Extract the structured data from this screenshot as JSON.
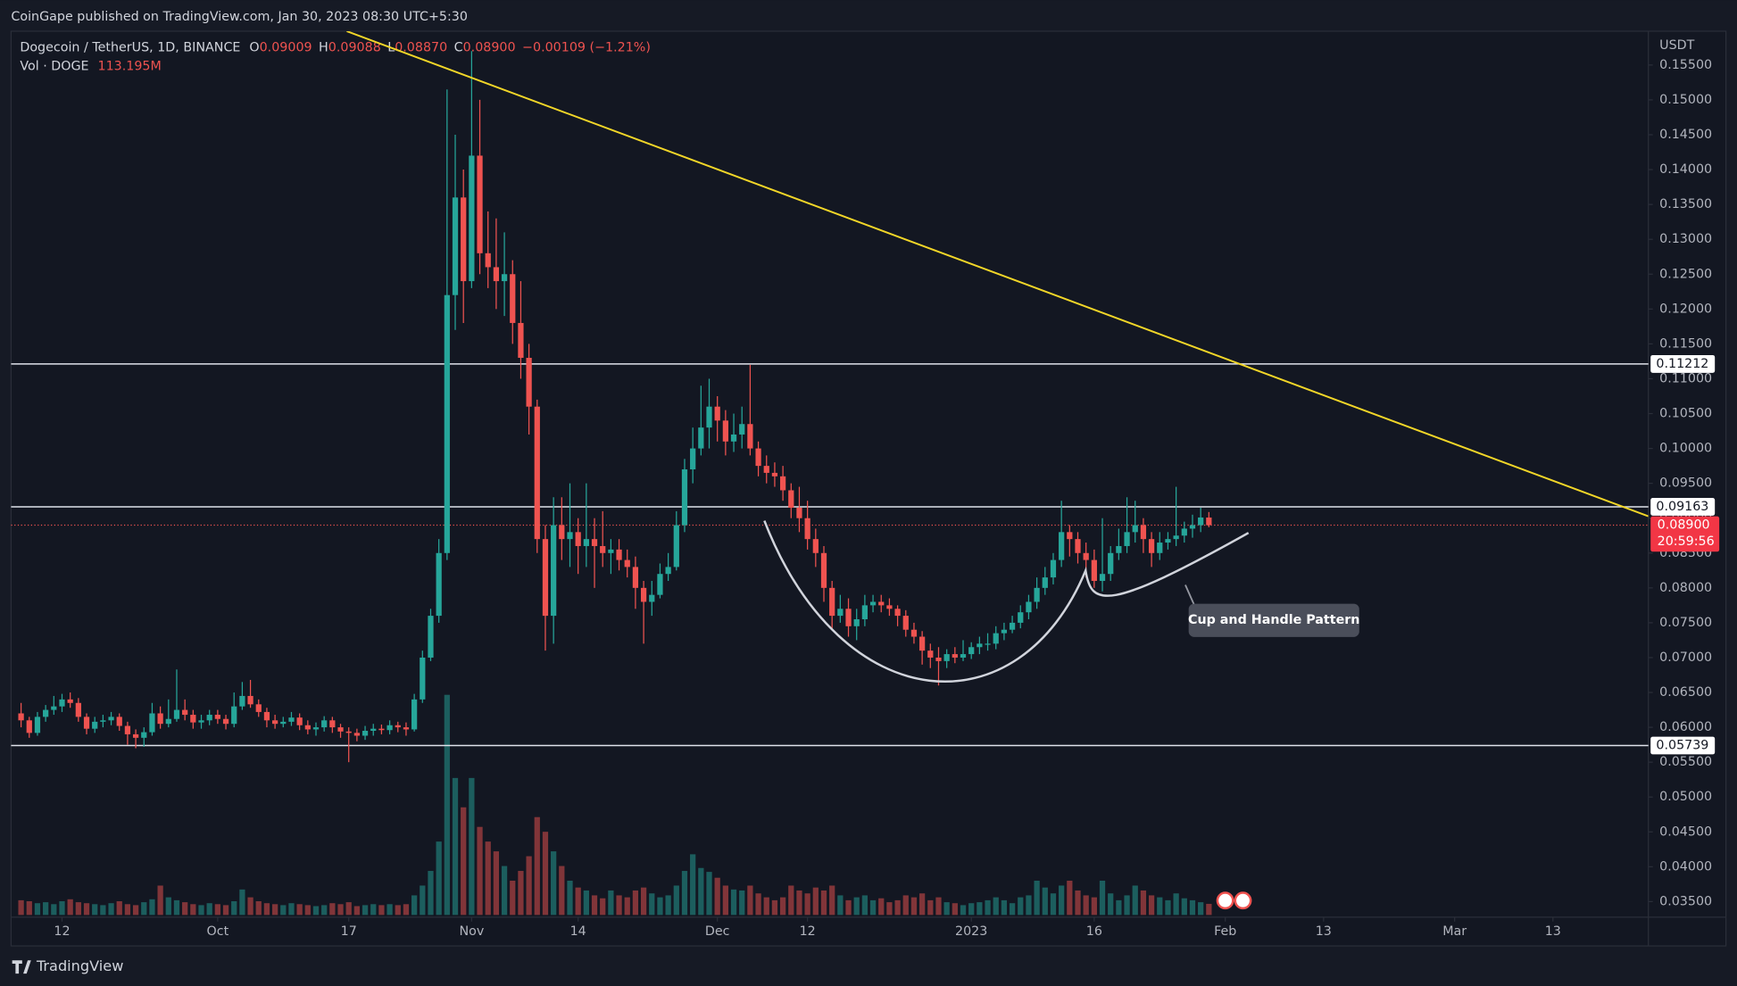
{
  "header": {
    "publisher": "CoinGape published on TradingView.com, Jan 30, 2023 08:30 UTC+5:30",
    "symbol": "Dogecoin / TetherUS, 1D, BINANCE",
    "ohlc": [
      [
        "O",
        "0.09009"
      ],
      [
        "H",
        "0.09088"
      ],
      [
        "L",
        "0.08870"
      ],
      [
        "C",
        "0.08900"
      ]
    ],
    "change": "−0.00109 (−1.21%)",
    "volume_name": "Vol · DOGE",
    "volume_value": "113.195M",
    "currency": "USDT",
    "brand": "TradingView"
  },
  "chart_data": {
    "type": "candlestick",
    "annotation": "Cup and Handle Pattern",
    "up_color": "#26a69a",
    "down_color": "#ef5350",
    "open": [
      0.062,
      0.061,
      0.0592,
      0.0615,
      0.0625,
      0.063,
      0.064,
      0.0635,
      0.0615,
      0.0598,
      0.0608,
      0.061,
      0.0615,
      0.0602,
      0.059,
      0.0585,
      0.0593,
      0.062,
      0.0605,
      0.0612,
      0.0625,
      0.0618,
      0.0607,
      0.061,
      0.0618,
      0.0612,
      0.0605,
      0.063,
      0.0645,
      0.0633,
      0.0622,
      0.061,
      0.0605,
      0.0608,
      0.0614,
      0.0603,
      0.0597,
      0.06,
      0.061,
      0.06,
      0.0594,
      0.0592,
      0.0588,
      0.0595,
      0.0598,
      0.0596,
      0.0603,
      0.06,
      0.0597,
      0.064,
      0.07,
      0.076,
      0.085,
      0.122,
      0.136,
      0.124,
      0.142,
      0.128,
      0.126,
      0.124,
      0.125,
      0.118,
      0.113,
      0.106,
      0.087,
      0.076,
      0.089,
      0.087,
      0.088,
      0.086,
      0.087,
      0.086,
      0.085,
      0.0855,
      0.084,
      0.083,
      0.08,
      0.078,
      0.079,
      0.082,
      0.083,
      0.089,
      0.097,
      0.1,
      0.103,
      0.106,
      0.104,
      0.101,
      0.102,
      0.1035,
      0.1,
      0.0975,
      0.0965,
      0.096,
      0.094,
      0.0915,
      0.09,
      0.087,
      0.085,
      0.08,
      0.076,
      0.077,
      0.0745,
      0.0755,
      0.0775,
      0.078,
      0.0775,
      0.077,
      0.076,
      0.074,
      0.073,
      0.071,
      0.07,
      0.0695,
      0.0705,
      0.07,
      0.0705,
      0.0715,
      0.072,
      0.072,
      0.0735,
      0.074,
      0.075,
      0.0765,
      0.078,
      0.08,
      0.0815,
      0.084,
      0.088,
      0.087,
      0.085,
      0.084,
      0.081,
      0.082,
      0.085,
      0.086,
      0.088,
      0.089,
      0.087,
      0.085,
      0.0865,
      0.087,
      0.0875,
      0.0885,
      0.089,
      0.09009
    ],
    "high": [
      0.0635,
      0.0615,
      0.0622,
      0.0632,
      0.0645,
      0.0648,
      0.065,
      0.0642,
      0.062,
      0.0615,
      0.0618,
      0.0622,
      0.062,
      0.0608,
      0.0597,
      0.06,
      0.0635,
      0.063,
      0.064,
      0.0683,
      0.064,
      0.0625,
      0.0618,
      0.0625,
      0.0625,
      0.0618,
      0.065,
      0.0665,
      0.0668,
      0.064,
      0.0628,
      0.0618,
      0.0615,
      0.0622,
      0.062,
      0.061,
      0.0607,
      0.0616,
      0.0615,
      0.0605,
      0.06,
      0.0598,
      0.0602,
      0.0605,
      0.0604,
      0.061,
      0.0608,
      0.0607,
      0.0648,
      0.071,
      0.077,
      0.087,
      0.1515,
      0.145,
      0.14,
      0.157,
      0.15,
      0.134,
      0.133,
      0.131,
      0.127,
      0.124,
      0.115,
      0.107,
      0.089,
      0.093,
      0.093,
      0.095,
      0.09,
      0.095,
      0.09,
      0.091,
      0.087,
      0.087,
      0.0855,
      0.0845,
      0.081,
      0.081,
      0.0835,
      0.085,
      0.091,
      0.0985,
      0.103,
      0.109,
      0.11,
      0.1075,
      0.1055,
      0.105,
      0.106,
      0.112,
      0.101,
      0.099,
      0.098,
      0.0975,
      0.095,
      0.0945,
      0.0925,
      0.0885,
      0.086,
      0.081,
      0.079,
      0.0785,
      0.077,
      0.079,
      0.079,
      0.079,
      0.0785,
      0.0775,
      0.0768,
      0.075,
      0.0738,
      0.072,
      0.0715,
      0.0712,
      0.0715,
      0.0725,
      0.0722,
      0.073,
      0.0735,
      0.0745,
      0.075,
      0.076,
      0.0775,
      0.079,
      0.0815,
      0.083,
      0.085,
      0.0925,
      0.089,
      0.088,
      0.0865,
      0.0855,
      0.09,
      0.086,
      0.0885,
      0.093,
      0.0925,
      0.09,
      0.088,
      0.088,
      0.088,
      0.0945,
      0.0895,
      0.0905,
      0.0915,
      0.09088
    ],
    "low": [
      0.06,
      0.0585,
      0.0588,
      0.0608,
      0.0618,
      0.0622,
      0.0628,
      0.0608,
      0.059,
      0.0592,
      0.06,
      0.0603,
      0.0595,
      0.0575,
      0.057,
      0.0572,
      0.0588,
      0.0598,
      0.06,
      0.0608,
      0.061,
      0.0598,
      0.0598,
      0.0603,
      0.0605,
      0.0597,
      0.06,
      0.0625,
      0.0628,
      0.0615,
      0.06,
      0.0598,
      0.06,
      0.0602,
      0.0596,
      0.059,
      0.0588,
      0.0594,
      0.0592,
      0.0585,
      0.055,
      0.058,
      0.0582,
      0.0588,
      0.059,
      0.059,
      0.0593,
      0.0588,
      0.0594,
      0.0635,
      0.0695,
      0.075,
      0.084,
      0.117,
      0.118,
      0.123,
      0.125,
      0.123,
      0.12,
      0.119,
      0.115,
      0.11,
      0.102,
      0.085,
      0.071,
      0.072,
      0.084,
      0.083,
      0.082,
      0.083,
      0.08,
      0.083,
      0.082,
      0.0825,
      0.0815,
      0.077,
      0.072,
      0.076,
      0.0785,
      0.081,
      0.0825,
      0.088,
      0.095,
      0.099,
      0.1,
      0.101,
      0.099,
      0.0995,
      0.1,
      0.099,
      0.096,
      0.095,
      0.0945,
      0.0925,
      0.09,
      0.088,
      0.0855,
      0.083,
      0.078,
      0.074,
      0.075,
      0.073,
      0.0725,
      0.0745,
      0.0765,
      0.0765,
      0.076,
      0.0745,
      0.073,
      0.072,
      0.069,
      0.0685,
      0.066,
      0.0685,
      0.0692,
      0.0695,
      0.0698,
      0.0705,
      0.071,
      0.0712,
      0.0725,
      0.0735,
      0.0742,
      0.0755,
      0.077,
      0.079,
      0.0805,
      0.083,
      0.0845,
      0.0835,
      0.0815,
      0.08,
      0.0795,
      0.081,
      0.084,
      0.085,
      0.0865,
      0.085,
      0.083,
      0.084,
      0.0855,
      0.086,
      0.0865,
      0.0872,
      0.088,
      0.0887
    ],
    "close": [
      0.061,
      0.0592,
      0.0615,
      0.0625,
      0.063,
      0.064,
      0.0635,
      0.0615,
      0.0598,
      0.0608,
      0.061,
      0.0615,
      0.0602,
      0.059,
      0.0585,
      0.0593,
      0.062,
      0.0605,
      0.0612,
      0.0625,
      0.0618,
      0.0607,
      0.061,
      0.0618,
      0.0612,
      0.0605,
      0.063,
      0.0645,
      0.0633,
      0.0622,
      0.061,
      0.0605,
      0.0608,
      0.0614,
      0.0603,
      0.0597,
      0.06,
      0.061,
      0.06,
      0.0594,
      0.0592,
      0.0588,
      0.0595,
      0.0598,
      0.0596,
      0.0603,
      0.06,
      0.0597,
      0.064,
      0.07,
      0.076,
      0.085,
      0.122,
      0.136,
      0.124,
      0.142,
      0.128,
      0.126,
      0.124,
      0.125,
      0.118,
      0.113,
      0.106,
      0.087,
      0.076,
      0.089,
      0.087,
      0.088,
      0.086,
      0.087,
      0.086,
      0.085,
      0.0855,
      0.084,
      0.083,
      0.08,
      0.078,
      0.079,
      0.082,
      0.083,
      0.089,
      0.097,
      0.1,
      0.103,
      0.106,
      0.104,
      0.101,
      0.102,
      0.1035,
      0.1,
      0.0975,
      0.0965,
      0.096,
      0.094,
      0.0915,
      0.09,
      0.087,
      0.085,
      0.08,
      0.076,
      0.077,
      0.0745,
      0.0755,
      0.0775,
      0.078,
      0.0775,
      0.077,
      0.076,
      0.074,
      0.073,
      0.071,
      0.07,
      0.0695,
      0.0705,
      0.07,
      0.0705,
      0.0715,
      0.072,
      0.072,
      0.0735,
      0.074,
      0.075,
      0.0765,
      0.078,
      0.08,
      0.0815,
      0.084,
      0.088,
      0.087,
      0.085,
      0.084,
      0.081,
      0.082,
      0.085,
      0.086,
      0.088,
      0.089,
      0.087,
      0.085,
      0.0865,
      0.087,
      0.0875,
      0.0885,
      0.089,
      0.0901,
      0.089
    ],
    "volume": [
      150,
      140,
      120,
      130,
      110,
      140,
      160,
      130,
      120,
      110,
      100,
      120,
      140,
      110,
      100,
      130,
      160,
      300,
      180,
      150,
      130,
      110,
      100,
      120,
      110,
      100,
      140,
      260,
      180,
      140,
      120,
      110,
      100,
      120,
      110,
      100,
      90,
      100,
      120,
      110,
      130,
      90,
      100,
      110,
      100,
      110,
      100,
      110,
      200,
      300,
      450,
      750,
      2250,
      1400,
      1100,
      1400,
      900,
      750,
      650,
      500,
      350,
      450,
      600,
      1000,
      850,
      650,
      500,
      350,
      280,
      250,
      200,
      170,
      250,
      200,
      180,
      250,
      280,
      220,
      180,
      200,
      300,
      450,
      620,
      480,
      440,
      380,
      300,
      260,
      250,
      300,
      220,
      180,
      150,
      180,
      300,
      250,
      220,
      280,
      250,
      300,
      200,
      150,
      180,
      200,
      150,
      170,
      130,
      150,
      200,
      180,
      220,
      150,
      180,
      130,
      120,
      100,
      120,
      130,
      150,
      180,
      150,
      120,
      180,
      200,
      350,
      280,
      220,
      300,
      350,
      250,
      200,
      180,
      350,
      220,
      150,
      200,
      300,
      250,
      200,
      180,
      150,
      220,
      170,
      150,
      130,
      113.195
    ],
    "volume_lim": [
      0,
      2400
    ],
    "xlim": [
      -1.22,
      198.65
    ],
    "xticks": [
      {
        "value": 5,
        "label": "12"
      },
      {
        "value": 24,
        "label": "Oct"
      },
      {
        "value": 40,
        "label": "17"
      },
      {
        "value": 55,
        "label": "Nov"
      },
      {
        "value": 68,
        "label": "14"
      },
      {
        "value": 85,
        "label": "Dec"
      },
      {
        "value": 96,
        "label": "12"
      },
      {
        "value": 116,
        "label": "2023"
      },
      {
        "value": 131,
        "label": "16"
      },
      {
        "value": 147,
        "label": "Feb"
      },
      {
        "value": 159,
        "label": "13"
      },
      {
        "value": 175,
        "label": "Mar"
      },
      {
        "value": 187,
        "label": "13"
      }
    ],
    "ylim": [
      0.03309,
      0.15985
    ],
    "yticks": [
      {
        "value": 0.035,
        "label": "0.03500"
      },
      {
        "value": 0.04,
        "label": "0.04000"
      },
      {
        "value": 0.045,
        "label": "0.04500"
      },
      {
        "value": 0.05,
        "label": "0.05000"
      },
      {
        "value": 0.055,
        "label": "0.05500"
      },
      {
        "value": 0.06,
        "label": "0.06000"
      },
      {
        "value": 0.065,
        "label": "0.06500"
      },
      {
        "value": 0.07,
        "label": "0.07000"
      },
      {
        "value": 0.075,
        "label": "0.07500"
      },
      {
        "value": 0.08,
        "label": "0.08000"
      },
      {
        "value": 0.085,
        "label": "0.08500"
      },
      {
        "value": 0.09,
        "label": "0.09000"
      },
      {
        "value": 0.095,
        "label": "0.09500"
      },
      {
        "value": 0.1,
        "label": "0.10000"
      },
      {
        "value": 0.105,
        "label": "0.10500"
      },
      {
        "value": 0.11,
        "label": "0.11000"
      },
      {
        "value": 0.115,
        "label": "0.11500"
      },
      {
        "value": 0.12,
        "label": "0.12000"
      },
      {
        "value": 0.125,
        "label": "0.12500"
      },
      {
        "value": 0.13,
        "label": "0.13000"
      },
      {
        "value": 0.135,
        "label": "0.13500"
      },
      {
        "value": 0.14,
        "label": "0.14000"
      },
      {
        "value": 0.145,
        "label": "0.14500"
      },
      {
        "value": 0.15,
        "label": "0.15000"
      },
      {
        "value": 0.155,
        "label": "0.15500"
      }
    ],
    "levels": [
      {
        "value": 0.11212,
        "label": "0.11212"
      },
      {
        "value": 0.09163,
        "label": "0.09163"
      },
      {
        "value": 0.05739,
        "label": "0.05739"
      }
    ],
    "last_price": {
      "value": 0.089,
      "label": "0.08900"
    },
    "countdown": "20:59:56"
  }
}
